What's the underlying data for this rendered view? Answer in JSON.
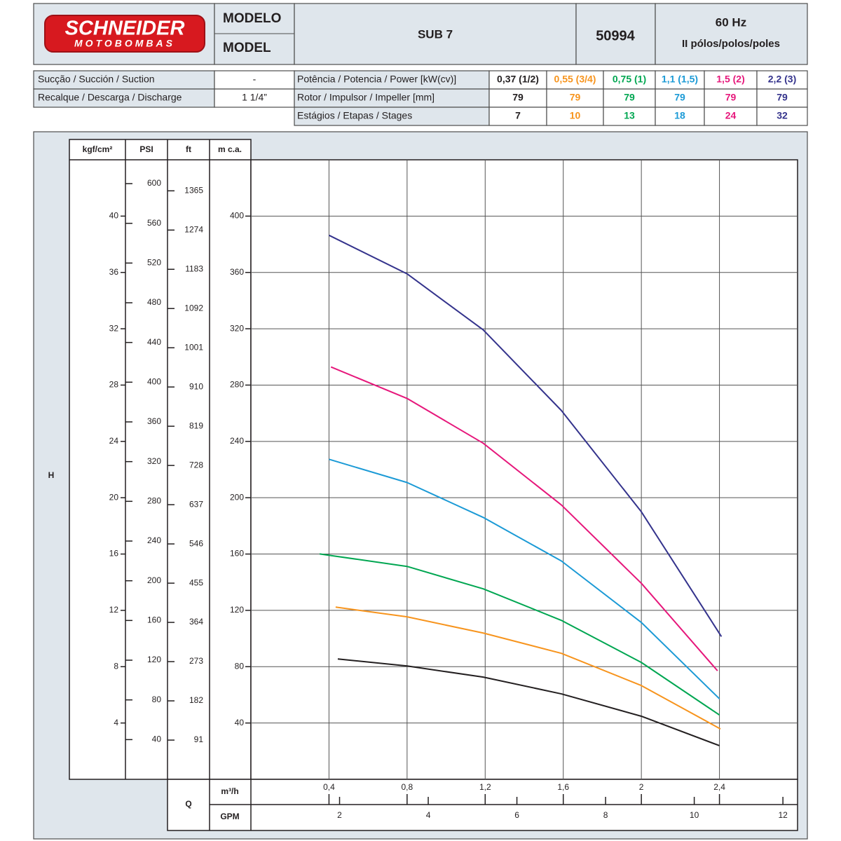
{
  "header": {
    "brand": "SCHNEIDER",
    "brand_sub": "MOTOBOMBAS",
    "model_label_1": "MODELO",
    "model_label_2": "MODEL",
    "model": "SUB 7",
    "code": "50994",
    "frequency": "60 Hz",
    "poles": "II pólos/polos/poles"
  },
  "specs": {
    "rows": [
      [
        "Sucção / Succión / Suction",
        "-"
      ],
      [
        "Recalque / Descarga / Discharge",
        "1 1/4”"
      ]
    ],
    "power_label": "Potência / Potencia / Power [kW(cv)]",
    "rotor_label": "Rotor / Impulsor / Impeller [mm]",
    "rotor": [
      79,
      79,
      79,
      79,
      79,
      79
    ],
    "stages_label": "Estágios / Etapas / Stages",
    "stages": [
      7,
      10,
      13,
      18,
      24,
      32
    ]
  },
  "chart_data": {
    "type": "line",
    "y_label": "H",
    "x_label": "Q",
    "x_unit": "m³/h",
    "x2_unit": "GPM",
    "y_unit": "m c.a.",
    "xlim": [
      0,
      2.8
    ],
    "xticks": [
      {
        "value": 0.4,
        "label": "0,4"
      },
      {
        "value": 0.8,
        "label": "0,8"
      },
      {
        "value": 1.2,
        "label": "1,2"
      },
      {
        "value": 1.6,
        "label": "1,6"
      },
      2,
      {
        "value": 2.4,
        "label": "2,4"
      }
    ],
    "x2lim": [
      0,
      12.33
    ],
    "x2ticks": [
      2,
      4,
      6,
      8,
      10,
      12
    ],
    "ylim": [
      0,
      440
    ],
    "yticks": [
      40,
      80,
      120,
      160,
      200,
      240,
      280,
      320,
      360,
      400
    ],
    "y_alt": [
      {
        "unit": "kgf/cm²",
        "lim": [
          0,
          44
        ],
        "ticks": [
          4,
          8,
          12,
          16,
          20,
          24,
          28,
          32,
          36,
          40
        ]
      },
      {
        "unit": "PSI",
        "lim": [
          0,
          624
        ],
        "ticks": [
          40,
          80,
          120,
          160,
          200,
          240,
          280,
          320,
          360,
          400,
          440,
          480,
          520,
          560,
          600
        ]
      },
      {
        "unit": "ft",
        "lim": [
          0,
          1437
        ],
        "ticks": [
          91,
          182,
          273,
          364,
          455,
          546,
          637,
          728,
          819,
          910,
          1001,
          1092,
          1183,
          1274,
          1365
        ]
      }
    ],
    "grid": true,
    "series": [
      {
        "name": "0,37 (1/2)",
        "color": "#231f20",
        "x": [
          0.445,
          0.8,
          1.19,
          1.59,
          2.0,
          2.4
        ],
        "values": [
          85.5,
          80.5,
          72.6,
          60.7,
          44.8,
          23.9
        ]
      },
      {
        "name": "0,55 (3/4)",
        "color": "#f7941d",
        "x": [
          0.434,
          0.8,
          1.19,
          1.59,
          2.0,
          2.405
        ],
        "values": [
          122.3,
          115.4,
          103.9,
          89.5,
          66.6,
          35.8
        ]
      },
      {
        "name": "0,75 (1)",
        "color": "#00a651",
        "x": [
          0.352,
          0.8,
          1.19,
          1.59,
          2.0,
          2.4
        ],
        "values": [
          160.1,
          151.2,
          135.3,
          112.9,
          83.0,
          45.7
        ]
      },
      {
        "name": "1,1 (1,5)",
        "color": "#1b9ad6",
        "x": [
          0.4,
          0.8,
          1.19,
          1.59,
          2.0,
          2.4
        ],
        "values": [
          227.3,
          210.8,
          186,
          155.1,
          111.4,
          57.2
        ]
      },
      {
        "name": "1,5 (2)",
        "color": "#e6177b",
        "x": [
          0.41,
          0.8,
          1.19,
          1.59,
          2.0,
          2.39
        ],
        "values": [
          292.9,
          270.5,
          238.7,
          194.9,
          139.2,
          77.1
        ]
      },
      {
        "name": "2,2 (3)",
        "color": "#34338c",
        "x": [
          0.4,
          0.8,
          1.19,
          1.59,
          2.0,
          2.41
        ],
        "values": [
          386.4,
          359,
          319.2,
          262,
          190,
          101.4
        ]
      }
    ]
  }
}
